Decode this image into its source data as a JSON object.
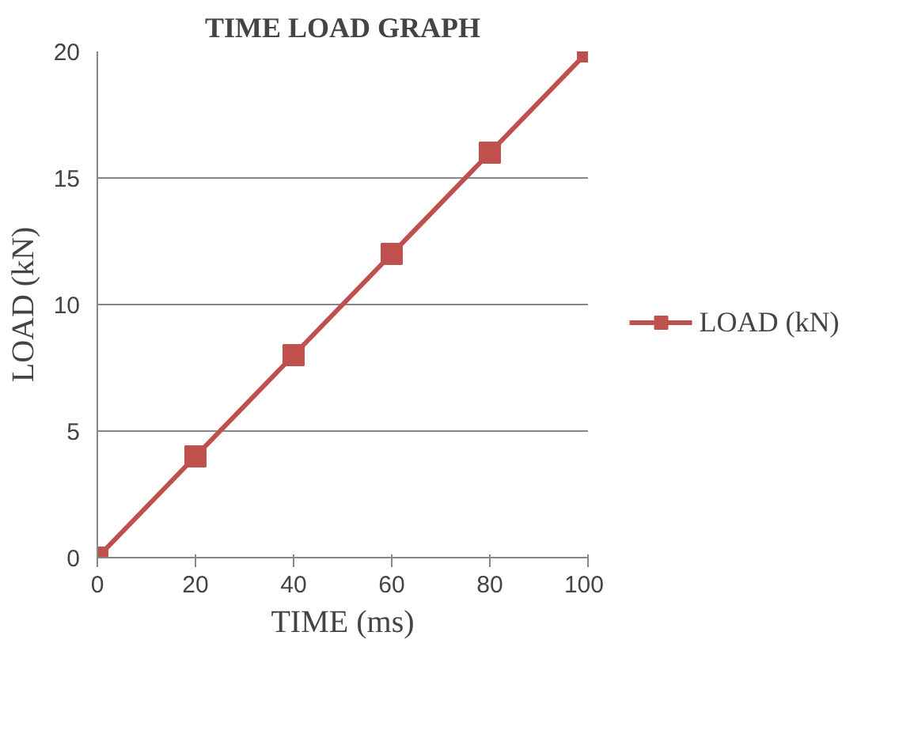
{
  "chart_data": {
    "type": "line",
    "title": "TIME LOAD GRAPH",
    "xlabel": "TIME (ms)",
    "ylabel": "LOAD (kN)",
    "x": [
      0,
      20,
      40,
      60,
      80,
      100
    ],
    "series": [
      {
        "name": "LOAD (kN)",
        "color": "#c0504d",
        "values": [
          0,
          4,
          8,
          12,
          16,
          20
        ]
      }
    ],
    "xlim": [
      0,
      100
    ],
    "xticks": [
      0,
      20,
      40,
      60,
      80,
      100
    ],
    "ylim": [
      0,
      20
    ],
    "yticks": [
      0,
      5,
      10,
      15,
      20
    ],
    "grid": "y",
    "legend": "right",
    "marker": "square",
    "line_style": "solid"
  }
}
